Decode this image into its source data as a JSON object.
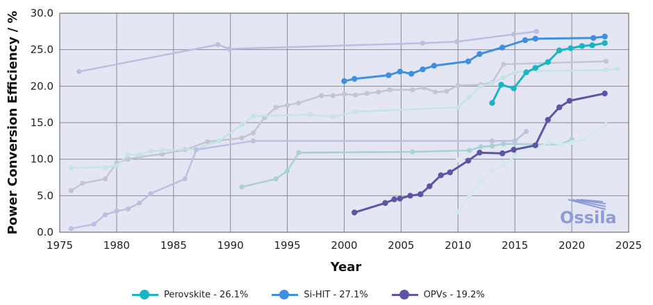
{
  "chart_data": {
    "type": "line",
    "xlabel": "Year",
    "ylabel": "Power Conversion Efficiency / %",
    "xlim": [
      1975,
      2025
    ],
    "ylim": [
      0,
      30
    ],
    "x_ticks": [
      "1975",
      "1980",
      "1985",
      "1990",
      "1995",
      "2000",
      "2005",
      "2010",
      "2015",
      "2020",
      "2025"
    ],
    "y_ticks": [
      "0.0",
      "5.0",
      "10.0",
      "15.0",
      "20.0",
      "25.0",
      "30.0"
    ],
    "grid": true,
    "legend_position": "bottom",
    "highlighted_series": [
      {
        "name": "Perovskite - 26.1%",
        "color": "#1ab4c3",
        "x": [
          2013,
          2013.8,
          2014.9,
          2016,
          2016.8,
          2017.9,
          2018.9,
          2019.9,
          2020.9,
          2021.8,
          2022.9
        ],
        "y": [
          17.7,
          20.2,
          19.7,
          21.9,
          22.5,
          23.3,
          24.9,
          25.2,
          25.5,
          25.6,
          25.9
        ]
      },
      {
        "name": "Si-HIT - 27.1%",
        "color": "#3f8fe0",
        "x": [
          2000,
          2000.9,
          2003.9,
          2004.9,
          2005.9,
          2006.9,
          2007.9,
          2010.9,
          2011.9,
          2013.9,
          2015.9,
          2016.8,
          2021.9,
          2022.9
        ],
        "y": [
          20.7,
          21.0,
          21.5,
          22.0,
          21.7,
          22.3,
          22.8,
          23.4,
          24.4,
          25.3,
          26.3,
          26.5,
          26.6,
          26.8
        ]
      },
      {
        "name": "OPVs - 19.2%",
        "color": "#5a56a4",
        "x": [
          2000.9,
          2003.6,
          2004.4,
          2004.9,
          2005.8,
          2006.7,
          2007.5,
          2008.5,
          2009.3,
          2010.9,
          2011.9,
          2013.9,
          2014.9,
          2016.8,
          2017.9,
          2018.9,
          2019.8,
          2022.9
        ],
        "y": [
          2.7,
          4.0,
          4.5,
          4.6,
          5.0,
          5.2,
          6.3,
          7.8,
          8.2,
          9.8,
          10.9,
          10.8,
          11.3,
          11.9,
          15.4,
          17.1,
          18.0,
          19.0
        ]
      }
    ],
    "background_series": [
      {
        "color": "#b8bfdf",
        "x": [
          1976.7,
          1988.9,
          1989.9,
          2006.9,
          2009.9,
          2014.9,
          2016.9
        ],
        "y": [
          22.0,
          25.7,
          25.1,
          25.9,
          26.1,
          27.1,
          27.5
        ]
      },
      {
        "color": "#c4c4d2",
        "x": [
          1976,
          1977,
          1979,
          1980,
          1981,
          1982,
          1984,
          1986,
          1988,
          1991,
          1992,
          1993,
          1994,
          1995,
          1996,
          1998,
          1999,
          2000,
          2001,
          2002,
          2003,
          2004,
          2006,
          2007,
          2008,
          2009,
          2010,
          2012,
          2013,
          2014,
          2023
        ],
        "y": [
          5.7,
          6.7,
          7.3,
          9.5,
          10.0,
          10.3,
          10.7,
          11.3,
          12.4,
          12.9,
          13.6,
          15.7,
          17.1,
          17.4,
          17.7,
          18.7,
          18.7,
          18.9,
          18.8,
          19.0,
          19.2,
          19.5,
          19.5,
          19.8,
          19.2,
          19.3,
          20.1,
          20.2,
          20.5,
          23.0,
          23.4
        ]
      },
      {
        "color": "#c4e4e6",
        "x": [
          1976,
          1979,
          1980,
          1981,
          1982,
          1983,
          1984,
          1987,
          1989,
          1991,
          1992,
          1997,
          1999,
          2001,
          2010,
          2011,
          2012,
          2013,
          2014,
          2015,
          2017,
          2023,
          2024
        ],
        "y": [
          8.8,
          8.9,
          9.1,
          10.6,
          10.6,
          11.1,
          11.2,
          11.4,
          12.5,
          14.7,
          15.9,
          16.1,
          15.8,
          16.5,
          17.1,
          18.5,
          20.0,
          20.4,
          21.2,
          21.9,
          22.1,
          22.2,
          22.4
        ]
      },
      {
        "color": "#bcbfe2",
        "x": [
          1976,
          1978,
          1979,
          1980,
          1981,
          1982,
          1983,
          1986,
          1987,
          1992,
          2013,
          2015,
          2016
        ],
        "y": [
          0.5,
          1.1,
          2.4,
          2.9,
          3.2,
          4.0,
          5.3,
          7.3,
          11.3,
          12.5,
          12.5,
          12.5,
          13.8
        ]
      },
      {
        "color": "#a8d2d2",
        "x": [
          1991,
          1994,
          1995,
          1996,
          2006,
          2011,
          2012,
          2013,
          2014,
          2019,
          2020
        ],
        "y": [
          6.2,
          7.3,
          8.4,
          10.9,
          11.0,
          11.2,
          11.7,
          11.8,
          12.1,
          12.0,
          12.7
        ]
      },
      {
        "color": "#d2e8ec",
        "x": [
          2010,
          2011,
          2012,
          2013,
          2014,
          2015,
          2016,
          2017,
          2018,
          2019,
          2020,
          2021,
          2023
        ],
        "y": [
          2.8,
          5.0,
          6.8,
          8.4,
          9.1,
          10.4,
          11.5,
          11.6,
          12.3,
          12.0,
          12.3,
          12.7,
          14.7
        ]
      },
      {
        "color": "#dde8f0",
        "x": [
          2009,
          2010,
          2011,
          2012,
          2013,
          2014
        ],
        "y": [
          9.4,
          9.9,
          10.3,
          10.7,
          11.0,
          11.4
        ]
      }
    ]
  },
  "logo": {
    "text": "Ossila"
  }
}
